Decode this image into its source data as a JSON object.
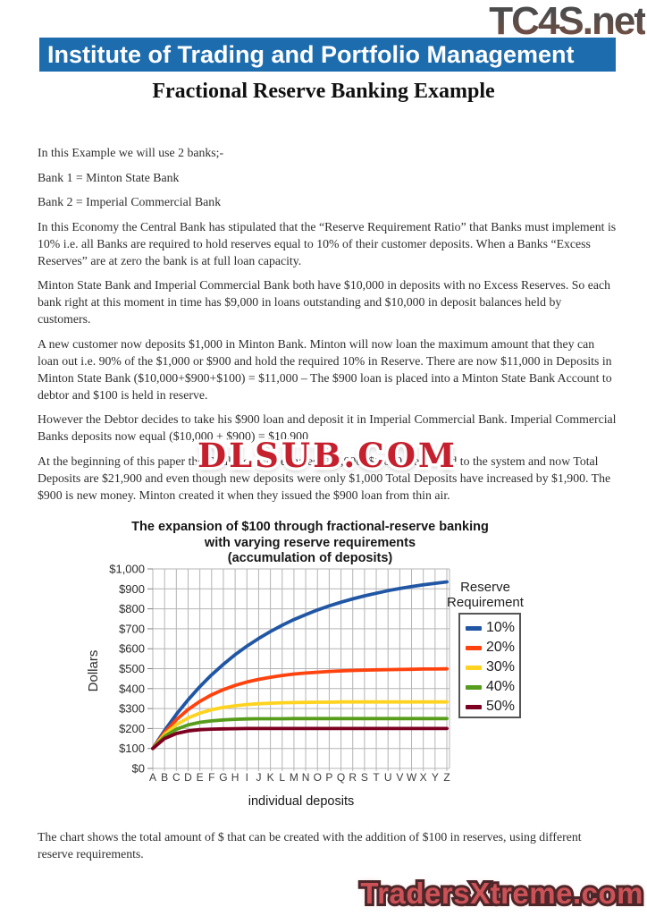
{
  "watermarks": {
    "top_logo": "TC4S.net",
    "middle": "DLSUB.COM",
    "footer": "TradersXtreme.com"
  },
  "header": {
    "banner": "Institute of Trading and Portfolio Management",
    "title": "Fractional Reserve Banking Example",
    "banner_bg_color": "#1d6cae"
  },
  "document": {
    "paragraphs": [
      "In this Example we will use 2 banks;-",
      "Bank 1 = Minton State Bank",
      "Bank 2 = Imperial Commercial Bank",
      "In this Economy the Central Bank has stipulated that the “Reserve Requirement Ratio” that Banks must implement is 10% i.e. all Banks are required to hold reserves equal to 10% of their customer deposits. When a Banks “Excess Reserves” are at zero the bank is at full loan capacity.",
      "Minton State Bank and Imperial Commercial Bank both have $10,000 in deposits with no Excess Reserves. So each bank right at this moment in time has $9,000 in loans outstanding and $10,000 in deposit balances held by customers.",
      "A new customer now deposits $1,000 in Minton Bank. Minton will now loan the maximum amount that they can loan out i.e. 90% of the $1,000 or $900 and hold the required 10% in Reserve. There are now $11,000 in Deposits in Minton State Bank ($10,000+$900+$100) = $11,000 – The $900 loan is placed into a Minton State Bank Account to debtor and $100 is held in reserve.",
      "However the Debtor decides to take his $900 loan and deposit it in Imperial Commercial Bank. Imperial Commercial Banks deposits now equal ($10,000 + $900) = $10,900",
      "At the beginning of this paper the Total Deposits equaled $20,000. $1,000 was added to the system and now Total Deposits are $21,900 and even though new deposits were only $1,000 Total Deposits have increased by $1,900. The $900 is new money. Minton created it when they issued the $900 loan from thin air."
    ],
    "closing_paragraph": "The chart shows the total amount of $ that can be created with the addition of $100 in reserves, using different reserve requirements."
  },
  "chart_data": {
    "type": "line",
    "title_lines": [
      "The expansion of $100 through fractional-reserve banking",
      "with varying reserve requirements",
      "(accumulation of deposits)"
    ],
    "xlabel": "individual deposits",
    "ylabel": "Dollars",
    "x_categories": [
      "A",
      "B",
      "C",
      "D",
      "E",
      "F",
      "G",
      "H",
      "I",
      "J",
      "K",
      "L",
      "M",
      "N",
      "O",
      "P",
      "Q",
      "R",
      "S",
      "T",
      "U",
      "V",
      "W",
      "X",
      "Y",
      "Z"
    ],
    "y_tick_labels": [
      "$0",
      "$100",
      "$200",
      "$300",
      "$400",
      "$500",
      "$600",
      "$700",
      "$800",
      "$900",
      "$1,000"
    ],
    "ylim": [
      0,
      1000
    ],
    "grid": true,
    "legend_title_lines": [
      "Reserve",
      "Requirement"
    ],
    "legend_position": "right",
    "series": [
      {
        "name": "10%",
        "color": "#2156a4",
        "values": [
          100,
          190,
          271,
          344,
          410,
          469,
          522,
          570,
          613,
          651,
          686,
          718,
          746,
          771,
          794,
          815,
          833,
          850,
          865,
          878,
          891,
          902,
          911,
          920,
          928,
          935
        ]
      },
      {
        "name": "20%",
        "color": "#ff420e",
        "values": [
          100,
          180,
          244,
          295,
          336,
          369,
          395,
          416,
          433,
          446,
          457,
          466,
          473,
          478,
          482,
          486,
          489,
          491,
          493,
          494,
          495,
          496,
          497,
          498,
          498,
          499
        ]
      },
      {
        "name": "30%",
        "color": "#ffd320",
        "values": [
          100,
          170,
          219,
          253,
          277,
          294,
          306,
          314,
          320,
          324,
          327,
          329,
          330,
          331,
          332,
          332,
          333,
          333,
          333,
          333,
          333,
          333,
          333,
          333,
          333,
          333
        ]
      },
      {
        "name": "40%",
        "color": "#579d1c",
        "values": [
          100,
          160,
          196,
          218,
          231,
          238,
          243,
          246,
          248,
          249,
          249,
          249,
          250,
          250,
          250,
          250,
          250,
          250,
          250,
          250,
          250,
          250,
          250,
          250,
          250,
          250
        ]
      },
      {
        "name": "50%",
        "color": "#7e0021",
        "values": [
          100,
          150,
          175,
          188,
          194,
          197,
          198,
          199,
          200,
          200,
          200,
          200,
          200,
          200,
          200,
          200,
          200,
          200,
          200,
          200,
          200,
          200,
          200,
          200,
          200,
          200
        ]
      }
    ]
  }
}
